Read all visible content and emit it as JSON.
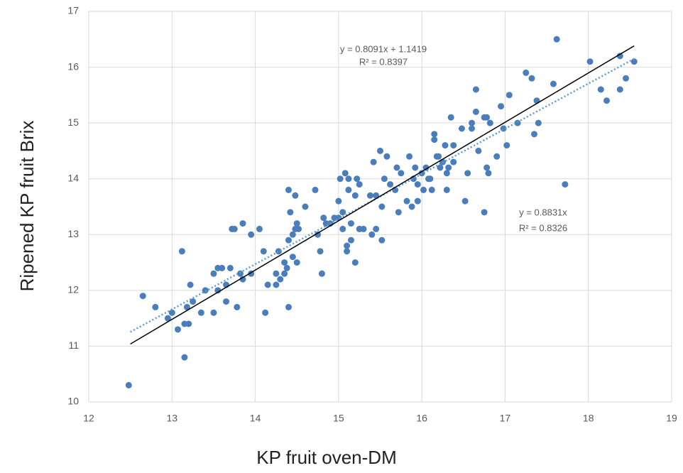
{
  "chart_data": {
    "type": "scatter",
    "x_label": "KP fruit oven-DM",
    "y_label": "Ripened KP fruit Brix",
    "xlim": [
      12,
      19
    ],
    "xticks": [
      12,
      13,
      14,
      15,
      16,
      17,
      18,
      19
    ],
    "ylim": [
      10,
      17
    ],
    "yticks": [
      10,
      11,
      12,
      13,
      14,
      15,
      16,
      17
    ],
    "grid": true,
    "color": "#4a7ebb",
    "x": [
      12.48,
      12.65,
      12.8,
      12.95,
      13.0,
      13.07,
      13.12,
      13.15,
      13.15,
      13.18,
      13.2,
      13.22,
      13.25,
      13.35,
      13.4,
      13.5,
      13.5,
      13.55,
      13.55,
      13.6,
      13.65,
      13.65,
      13.7,
      13.72,
      13.75,
      13.78,
      13.82,
      13.85,
      13.85,
      13.95,
      13.95,
      14.05,
      14.1,
      14.12,
      14.15,
      14.25,
      14.25,
      14.28,
      14.3,
      14.35,
      14.35,
      14.38,
      14.4,
      14.4,
      14.4,
      14.42,
      14.45,
      14.45,
      14.48,
      14.48,
      14.5,
      14.5,
      14.52,
      14.6,
      14.72,
      14.75,
      14.78,
      14.8,
      14.82,
      14.85,
      14.9,
      14.95,
      15.0,
      15.0,
      15.02,
      15.05,
      15.05,
      15.08,
      15.1,
      15.1,
      15.12,
      15.12,
      15.15,
      15.15,
      15.2,
      15.2,
      15.22,
      15.25,
      15.25,
      15.3,
      15.38,
      15.4,
      15.42,
      15.45,
      15.45,
      15.5,
      15.52,
      15.52,
      15.55,
      15.58,
      15.62,
      15.68,
      15.7,
      15.72,
      15.75,
      15.82,
      15.85,
      15.88,
      15.9,
      15.92,
      15.95,
      15.95,
      16.0,
      16.02,
      16.05,
      16.08,
      16.1,
      16.12,
      16.15,
      16.15,
      16.18,
      16.2,
      16.22,
      16.25,
      16.28,
      16.3,
      16.3,
      16.32,
      16.35,
      16.38,
      16.38,
      16.48,
      16.52,
      16.55,
      16.6,
      16.6,
      16.65,
      16.65,
      16.68,
      16.75,
      16.75,
      16.78,
      16.78,
      16.8,
      16.82,
      16.9,
      16.95,
      16.98,
      17.02,
      17.05,
      17.15,
      17.25,
      17.32,
      17.35,
      17.38,
      17.4,
      17.58,
      17.62,
      17.72,
      18.02,
      18.15,
      18.22,
      18.38,
      18.38,
      18.45,
      18.55
    ],
    "y": [
      10.3,
      11.9,
      11.7,
      11.5,
      11.6,
      11.3,
      12.7,
      11.4,
      10.8,
      11.7,
      11.4,
      12.1,
      11.8,
      11.6,
      12.0,
      12.3,
      11.6,
      12.4,
      12.0,
      12.4,
      12.1,
      11.8,
      12.4,
      13.1,
      13.1,
      11.7,
      12.3,
      13.2,
      12.2,
      13.0,
      12.3,
      13.1,
      12.7,
      11.6,
      12.1,
      12.1,
      12.3,
      12.7,
      12.2,
      12.5,
      12.3,
      12.4,
      13.8,
      12.9,
      11.7,
      13.4,
      13.0,
      12.6,
      13.7,
      13.1,
      13.2,
      12.5,
      13.1,
      13.5,
      13.8,
      13.0,
      12.7,
      12.3,
      13.3,
      13.2,
      13.2,
      13.3,
      13.6,
      13.3,
      14.0,
      13.4,
      13.1,
      14.1,
      12.8,
      12.7,
      14.0,
      13.8,
      13.2,
      12.9,
      13.7,
      12.5,
      14.0,
      13.9,
      13.1,
      13.1,
      13.7,
      13.0,
      14.3,
      13.7,
      13.1,
      14.5,
      13.5,
      12.9,
      14.0,
      14.4,
      13.9,
      13.8,
      14.2,
      13.4,
      14.1,
      13.6,
      14.4,
      13.5,
      14.0,
      14.2,
      13.9,
      13.6,
      14.1,
      13.8,
      14.2,
      14.0,
      14.0,
      13.8,
      14.8,
      14.7,
      14.4,
      14.4,
      14.2,
      14.3,
      14.6,
      14.1,
      13.8,
      14.2,
      15.1,
      14.6,
      14.3,
      14.9,
      13.6,
      14.1,
      15.0,
      14.9,
      15.6,
      15.2,
      14.5,
      13.4,
      15.1,
      15.1,
      14.2,
      14.1,
      15.0,
      14.4,
      15.3,
      14.9,
      14.6,
      15.5,
      15.0,
      15.9,
      15.8,
      14.8,
      15.4,
      15.0,
      15.7,
      16.5,
      13.9,
      16.1,
      15.6,
      15.4,
      16.2,
      15.6,
      15.8,
      16.1
    ],
    "trendlines": [
      {
        "slope": 0.8091,
        "intercept": 1.1419,
        "x_range": [
          12.5,
          18.55
        ],
        "color": "#5b9bd5",
        "dashed": true,
        "equation": "y = 0.8091x + 1.1419",
        "r2": "R² = 0.8397"
      },
      {
        "slope": 0.8831,
        "x_range": [
          12.5,
          18.55
        ],
        "color": "#000000",
        "dashed": false,
        "equation": "y = 0.8831x",
        "r2": "R² = 0.8326"
      }
    ]
  }
}
